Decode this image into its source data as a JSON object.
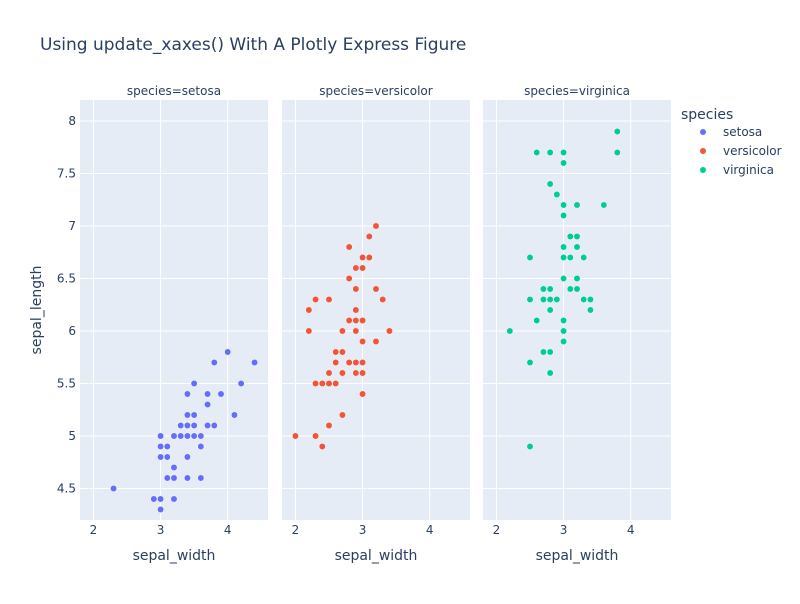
{
  "chart_data": {
    "type": "scatter",
    "title": "Using update_xaxes() With A Plotly Express Figure",
    "xlabel": "sepal_width",
    "ylabel": "sepal_length",
    "xlim": [
      1.8,
      4.6
    ],
    "ylim": [
      4.2,
      8.2
    ],
    "x_ticks": [
      2,
      3,
      4
    ],
    "y_ticks": [
      4.5,
      5,
      5.5,
      6,
      6.5,
      7,
      7.5,
      8
    ],
    "y_tick_labels": [
      "4.5",
      "5",
      "5.5",
      "6",
      "6.5",
      "7",
      "7.5",
      "8"
    ],
    "grid": true,
    "legend": {
      "title": "species",
      "placement": "right"
    },
    "facets": [
      {
        "label": "species=setosa",
        "name": "setosa",
        "color": "#636efa",
        "points": [
          [
            3.5,
            5.1
          ],
          [
            3.0,
            4.9
          ],
          [
            3.2,
            4.7
          ],
          [
            3.1,
            4.6
          ],
          [
            3.6,
            5.0
          ],
          [
            3.9,
            5.4
          ],
          [
            3.4,
            4.6
          ],
          [
            3.4,
            5.0
          ],
          [
            2.9,
            4.4
          ],
          [
            3.1,
            4.9
          ],
          [
            3.7,
            5.4
          ],
          [
            3.4,
            4.8
          ],
          [
            3.0,
            4.8
          ],
          [
            3.0,
            4.3
          ],
          [
            4.0,
            5.8
          ],
          [
            4.4,
            5.7
          ],
          [
            3.9,
            5.4
          ],
          [
            3.5,
            5.1
          ],
          [
            3.8,
            5.7
          ],
          [
            3.8,
            5.1
          ],
          [
            3.4,
            5.4
          ],
          [
            3.7,
            5.1
          ],
          [
            3.6,
            4.6
          ],
          [
            3.3,
            5.1
          ],
          [
            3.4,
            4.8
          ],
          [
            3.0,
            5.0
          ],
          [
            3.4,
            5.0
          ],
          [
            3.5,
            5.2
          ],
          [
            3.4,
            5.2
          ],
          [
            3.2,
            4.7
          ],
          [
            3.1,
            4.8
          ],
          [
            3.4,
            5.4
          ],
          [
            4.1,
            5.2
          ],
          [
            4.2,
            5.5
          ],
          [
            3.1,
            4.9
          ],
          [
            3.2,
            5.0
          ],
          [
            3.5,
            5.5
          ],
          [
            3.6,
            4.9
          ],
          [
            3.0,
            4.4
          ],
          [
            3.4,
            5.1
          ],
          [
            3.5,
            5.0
          ],
          [
            2.3,
            4.5
          ],
          [
            3.2,
            4.4
          ],
          [
            3.5,
            5.0
          ],
          [
            3.8,
            5.1
          ],
          [
            3.0,
            4.8
          ],
          [
            3.8,
            5.1
          ],
          [
            3.2,
            4.6
          ],
          [
            3.7,
            5.3
          ],
          [
            3.3,
            5.0
          ]
        ]
      },
      {
        "label": "species=versicolor",
        "name": "versicolor",
        "color": "#ef553b",
        "points": [
          [
            3.2,
            7.0
          ],
          [
            3.2,
            6.4
          ],
          [
            3.1,
            6.9
          ],
          [
            2.3,
            5.5
          ],
          [
            2.8,
            6.5
          ],
          [
            2.8,
            5.7
          ],
          [
            3.3,
            6.3
          ],
          [
            2.4,
            4.9
          ],
          [
            2.9,
            6.6
          ],
          [
            2.7,
            5.2
          ],
          [
            2.0,
            5.0
          ],
          [
            3.0,
            5.9
          ],
          [
            2.2,
            6.0
          ],
          [
            2.9,
            6.1
          ],
          [
            2.9,
            5.6
          ],
          [
            3.1,
            6.7
          ],
          [
            3.0,
            5.6
          ],
          [
            2.7,
            5.8
          ],
          [
            2.2,
            6.2
          ],
          [
            2.5,
            5.6
          ],
          [
            3.2,
            5.9
          ],
          [
            2.8,
            6.1
          ],
          [
            2.5,
            6.3
          ],
          [
            2.8,
            6.1
          ],
          [
            2.9,
            6.4
          ],
          [
            3.0,
            6.6
          ],
          [
            2.8,
            6.8
          ],
          [
            3.0,
            6.7
          ],
          [
            2.9,
            6.0
          ],
          [
            2.6,
            5.7
          ],
          [
            2.4,
            5.5
          ],
          [
            2.4,
            5.5
          ],
          [
            2.7,
            5.8
          ],
          [
            2.7,
            6.0
          ],
          [
            3.0,
            5.4
          ],
          [
            3.4,
            6.0
          ],
          [
            3.1,
            6.7
          ],
          [
            2.3,
            6.3
          ],
          [
            3.0,
            5.6
          ],
          [
            2.5,
            5.5
          ],
          [
            2.6,
            5.5
          ],
          [
            3.0,
            6.1
          ],
          [
            2.6,
            5.8
          ],
          [
            2.3,
            5.0
          ],
          [
            2.7,
            5.6
          ],
          [
            3.0,
            5.7
          ],
          [
            2.9,
            5.7
          ],
          [
            2.9,
            6.2
          ],
          [
            2.5,
            5.1
          ],
          [
            2.8,
            5.7
          ]
        ]
      },
      {
        "label": "species=virginica",
        "name": "virginica",
        "color": "#00cc96",
        "points": [
          [
            3.3,
            6.3
          ],
          [
            2.7,
            5.8
          ],
          [
            3.0,
            7.1
          ],
          [
            2.9,
            6.3
          ],
          [
            3.0,
            6.5
          ],
          [
            3.0,
            7.6
          ],
          [
            2.5,
            4.9
          ],
          [
            2.9,
            7.3
          ],
          [
            2.5,
            6.7
          ],
          [
            3.6,
            7.2
          ],
          [
            3.2,
            6.5
          ],
          [
            2.7,
            6.4
          ],
          [
            3.0,
            6.8
          ],
          [
            2.5,
            5.7
          ],
          [
            2.8,
            5.8
          ],
          [
            3.2,
            6.4
          ],
          [
            3.0,
            6.5
          ],
          [
            3.8,
            7.7
          ],
          [
            2.6,
            7.7
          ],
          [
            2.2,
            6.0
          ],
          [
            3.2,
            6.9
          ],
          [
            2.8,
            5.6
          ],
          [
            2.8,
            7.7
          ],
          [
            2.7,
            6.3
          ],
          [
            3.3,
            6.7
          ],
          [
            3.2,
            7.2
          ],
          [
            2.8,
            6.2
          ],
          [
            3.0,
            6.1
          ],
          [
            2.8,
            6.4
          ],
          [
            3.0,
            7.2
          ],
          [
            2.8,
            7.4
          ],
          [
            3.8,
            7.9
          ],
          [
            2.8,
            6.4
          ],
          [
            2.8,
            6.3
          ],
          [
            2.6,
            6.1
          ],
          [
            3.0,
            7.7
          ],
          [
            3.4,
            6.3
          ],
          [
            3.1,
            6.4
          ],
          [
            3.0,
            6.0
          ],
          [
            3.1,
            6.9
          ],
          [
            3.1,
            6.7
          ],
          [
            3.1,
            6.9
          ],
          [
            2.7,
            5.8
          ],
          [
            3.2,
            6.8
          ],
          [
            3.3,
            6.7
          ],
          [
            3.0,
            6.7
          ],
          [
            2.5,
            6.3
          ],
          [
            3.0,
            6.5
          ],
          [
            3.4,
            6.2
          ],
          [
            3.0,
            5.9
          ]
        ]
      }
    ]
  }
}
